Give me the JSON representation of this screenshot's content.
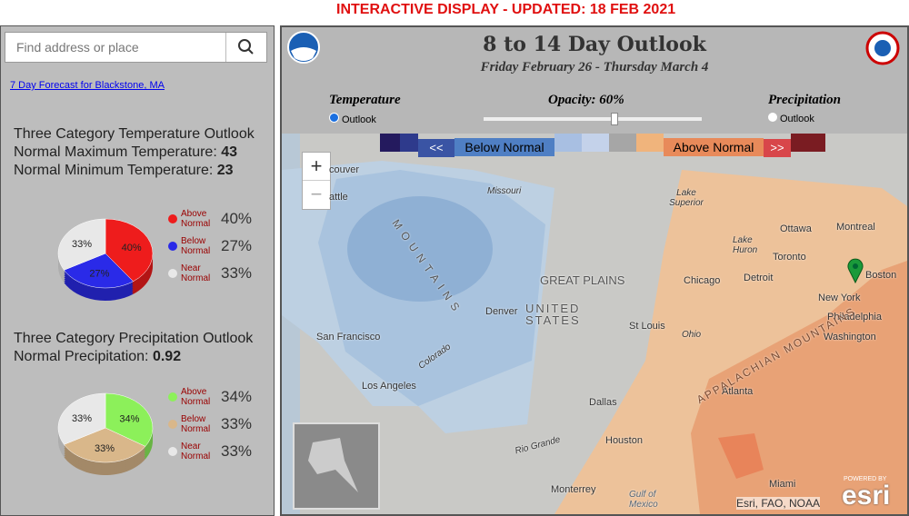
{
  "banner": "INTERACTIVE DISPLAY - UPDATED: 18 FEB 2021",
  "search": {
    "placeholder": "Find address or place"
  },
  "forecast_link": "7 Day Forecast for Blackstone, MA",
  "temperature": {
    "title": "Three Category Temperature Outlook",
    "rows": [
      {
        "label": "Normal Maximum Temperature:",
        "value": 43
      },
      {
        "label": "Normal Minimum Temperature:",
        "value": 23
      }
    ],
    "chart_data": {
      "type": "pie",
      "categories": [
        "Above Normal",
        "Below Normal",
        "Near Normal"
      ],
      "values": [
        40,
        27,
        33
      ],
      "value_labels": [
        "40%",
        "27%",
        "33%"
      ],
      "colors": [
        "#ee1c1c",
        "#2a2ae8",
        "#e8e8e8"
      ]
    }
  },
  "precipitation": {
    "title": "Three Category Precipitation Outlook",
    "rows": [
      {
        "label": "Normal Precipitation:",
        "value": 0.92
      }
    ],
    "chart_data": {
      "type": "pie",
      "categories": [
        "Above Normal",
        "Below Normal",
        "Near Normal"
      ],
      "values": [
        34,
        33,
        33
      ],
      "value_labels": [
        "34%",
        "33%",
        "33%"
      ],
      "colors": [
        "#8cf05a",
        "#d9b78a",
        "#e8e8e8"
      ]
    }
  },
  "map": {
    "title": "8 to 14 Day Outlook",
    "subtitle": "Friday February 26 - Thursday March 4",
    "controls": {
      "temperature": "Temperature",
      "temperature_option": "Outlook",
      "opacity": "Opacity: 60%",
      "precipitation": "Precipitation",
      "precipitation_option": "Outlook"
    },
    "legend": {
      "prev": "<<",
      "below": "Below Normal",
      "above": "Above Normal",
      "next": ">>"
    },
    "zoom_in": "+",
    "zoom_out": "−",
    "labels": [
      "couver",
      "attle",
      "Missouri",
      "Lake Superior",
      "Ottawa",
      "Montreal",
      "Lake Huron",
      "Toronto",
      "Boston",
      "Chicago",
      "Detroit",
      "GREAT PLAINS",
      "New York",
      "Philadelphia",
      "Denver",
      "UNITED STATES",
      "St Louis",
      "Washington",
      "San Francisco",
      "Ohio",
      "Colorado",
      "Los Angeles",
      "Atlanta",
      "Dallas",
      "Houston",
      "Rio Grande",
      "Miami",
      "Monterrey",
      "Gulf of Mexico",
      "APPALACHIAN MOUNTAINS",
      "MOUNTAINS"
    ],
    "attribution": "Esri, FAO, NOAA",
    "powered_by": "POWERED BY",
    "esri": "esri"
  }
}
